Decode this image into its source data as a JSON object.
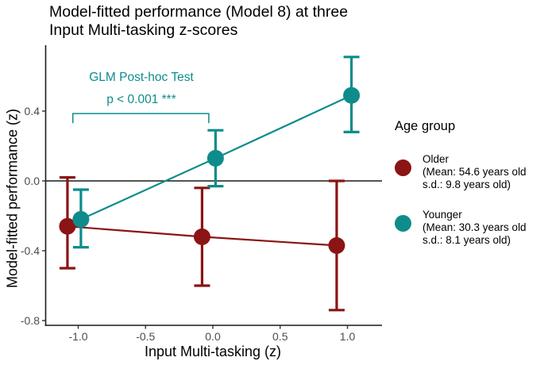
{
  "title": {
    "line1": "Model-fitted performance (Model 8) at three",
    "line2": " Input Multi-tasking z-scores"
  },
  "annotation": {
    "line1": "GLM Post-hoc Test",
    "line2": "p < 0.001 ***",
    "color": "#0E8C8C"
  },
  "axes": {
    "x_label": "Input Multi-tasking (z)",
    "y_label": "Model-fitted performance (z)",
    "x_ticks": [
      {
        "label": "-1.0",
        "value": -1.0
      },
      {
        "label": "-0.5",
        "value": -0.5
      },
      {
        "label": "0.0",
        "value": 0.0
      },
      {
        "label": "0.5",
        "value": 0.5
      },
      {
        "label": "1.0",
        "value": 1.0
      }
    ],
    "y_ticks": [
      {
        "label": "0.4",
        "value": 0.4
      },
      {
        "label": "0.0",
        "value": 0.0
      },
      {
        "label": "-0.4",
        "value": -0.4
      },
      {
        "label": "-0.8",
        "value": -0.8
      }
    ]
  },
  "legend": {
    "title": "Age group",
    "items": [
      {
        "name": "Older",
        "mean_line": "(Mean: 54.6 years old",
        "sd_line": " s.d.: 9.8 years old)",
        "color": "#8B1414"
      },
      {
        "name": "Younger",
        "mean_line": "(Mean: 30.3 years old",
        "sd_line": " s.d.: 8.1 years old)",
        "color": "#0E8C8C"
      }
    ]
  },
  "chart_data": {
    "type": "scatter",
    "subtype": "points-with-error-bars-and-trend-lines",
    "title": "Model-fitted performance (Model 8) at three Input Multi-tasking z-scores",
    "xlabel": "Input Multi-tasking (z)",
    "ylabel": "Model-fitted performance (z)",
    "xlim": [
      -1.25,
      1.26
    ],
    "ylim": [
      -0.83,
      0.78
    ],
    "grid": false,
    "zero_line_y": 0.0,
    "x_categories": [
      -1,
      0,
      1
    ],
    "series": [
      {
        "name": "Older",
        "color": "#8B1414",
        "x": [
          -1.08,
          -0.08,
          0.92
        ],
        "y": [
          -0.26,
          -0.32,
          -0.37
        ],
        "ci_low": [
          -0.5,
          -0.6,
          -0.74
        ],
        "ci_high": [
          0.02,
          -0.04,
          0.0
        ]
      },
      {
        "name": "Younger",
        "color": "#0E8C8C",
        "x": [
          -0.98,
          0.02,
          1.03
        ],
        "y": [
          -0.22,
          0.13,
          0.49
        ],
        "ci_low": [
          -0.38,
          -0.03,
          0.28
        ],
        "ci_high": [
          -0.05,
          0.29,
          0.71
        ]
      }
    ],
    "bracket": {
      "x1": -1.04,
      "x2": -0.03,
      "y": 0.386,
      "color": "#0E8C8C"
    },
    "legend_position": "right"
  }
}
